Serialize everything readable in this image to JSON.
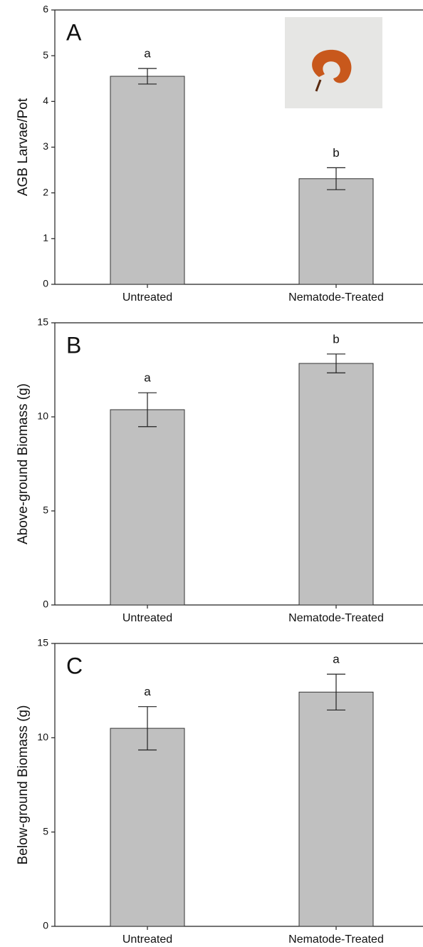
{
  "chart_data": [
    {
      "type": "bar",
      "panel_label": "A",
      "ylabel": "AGB Larvae/Pot",
      "categories": [
        "Untreated",
        "Nematode-Treated"
      ],
      "values": [
        4.55,
        2.31
      ],
      "errors": [
        0.17,
        0.24
      ],
      "annotations": [
        "a",
        "b"
      ],
      "color": "#c0c0c0",
      "ylim": [
        0,
        6
      ],
      "yticks": [
        0,
        1,
        2,
        3,
        4,
        5,
        6
      ]
    },
    {
      "type": "bar",
      "panel_label": "B",
      "ylabel": "Above-ground Biomass (g)",
      "categories": [
        "Untreated",
        "Nematode-Treated"
      ],
      "values": [
        10.38,
        12.84
      ],
      "errors": [
        0.9,
        0.5
      ],
      "annotations": [
        "a",
        "b"
      ],
      "color": "#c0c0c0",
      "ylim": [
        0,
        15
      ],
      "yticks": [
        0,
        5,
        10,
        15
      ]
    },
    {
      "type": "bar",
      "panel_label": "C",
      "ylabel": "Below-ground Biomass (g)",
      "categories": [
        "Untreated",
        "Nematode-Treated"
      ],
      "values": [
        10.5,
        12.42
      ],
      "errors": [
        1.15,
        0.95
      ],
      "annotations": [
        "a",
        "a"
      ],
      "color": "#c0c0c0",
      "ylim": [
        0,
        15
      ],
      "yticks": [
        0,
        5,
        10,
        15
      ]
    }
  ]
}
